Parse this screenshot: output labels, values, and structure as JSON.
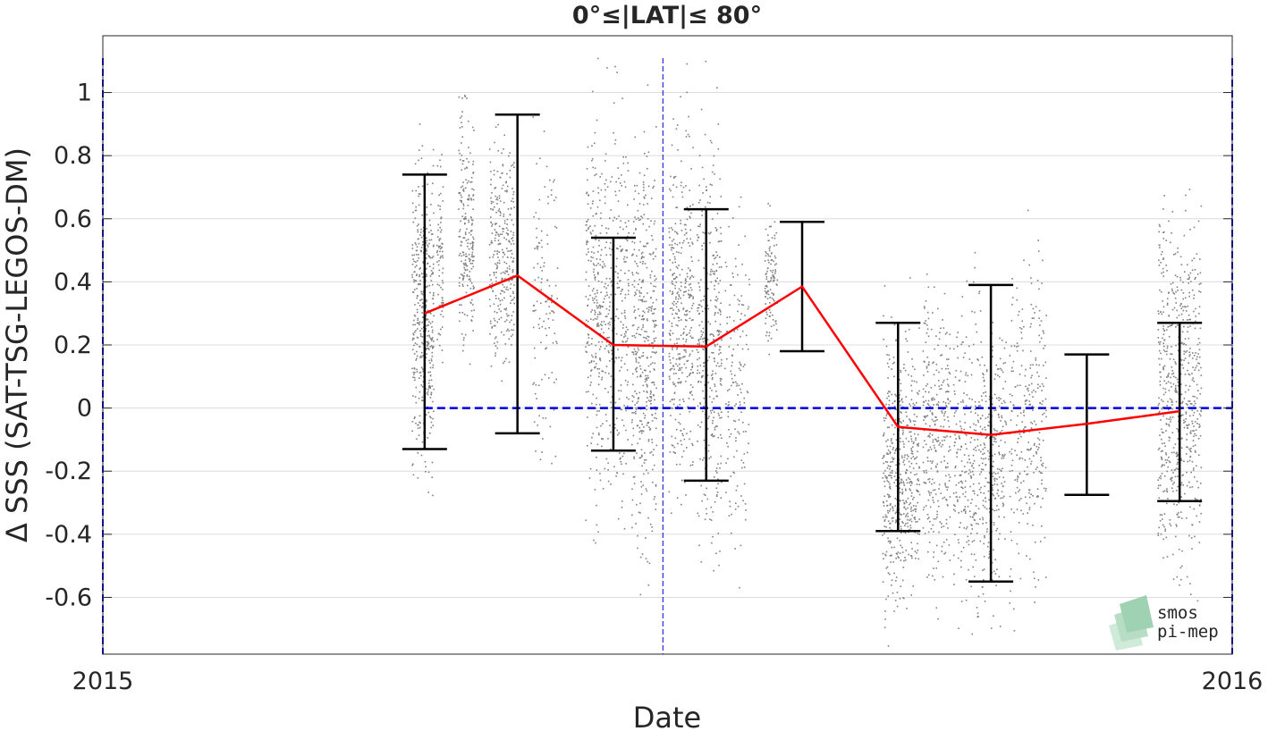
{
  "chart_data": {
    "type": "scatter",
    "title": "0°≤|LAT|≤ 80°",
    "xlabel": "Date",
    "ylabel": "Δ SSS (SAT-TSG-LEGOS-DM)",
    "xlim": [
      "2015-01-01",
      "2016-01-01"
    ],
    "ylim": [
      -0.78,
      1.18
    ],
    "x_tick_labels": [
      "2015",
      "2016"
    ],
    "y_ticks": [
      -0.6,
      -0.4,
      -0.2,
      0,
      0.2,
      0.4,
      0.6,
      0.8,
      1
    ],
    "y_tick_labels": [
      "-0.6",
      "-0.4",
      "-0.2",
      "0",
      "0.2",
      "0.4",
      "0.6",
      "0.8",
      "1"
    ],
    "grid": "horizontal",
    "reference_line": {
      "y": 0,
      "color": "#0000e6",
      "style": "dashed"
    },
    "vertical_markers": [
      {
        "x": "2015-01-01",
        "color": "#0000e6"
      },
      {
        "x": "2015-07-01",
        "color": "#0000e6"
      },
      {
        "x": "2016-01-01",
        "color": "#0000e6"
      }
    ],
    "scatter_color": "#808080",
    "mean_line_color": "#ff0000",
    "errorbar_color": "#000000",
    "binned_stats": [
      {
        "x": "2015-04-15",
        "mean": 0.3,
        "lower": -0.13,
        "upper": 0.74
      },
      {
        "x": "2015-05-15",
        "mean": 0.42,
        "lower": -0.08,
        "upper": 0.93
      },
      {
        "x": "2015-06-15",
        "mean": 0.2,
        "lower": -0.135,
        "upper": 0.54
      },
      {
        "x": "2015-07-15",
        "mean": 0.195,
        "lower": -0.23,
        "upper": 0.63
      },
      {
        "x": "2015-08-15",
        "mean": 0.385,
        "lower": 0.18,
        "upper": 0.59
      },
      {
        "x": "2015-09-15",
        "mean": -0.06,
        "lower": -0.39,
        "upper": 0.27
      },
      {
        "x": "2015-10-15",
        "mean": -0.085,
        "lower": -0.55,
        "upper": 0.39
      },
      {
        "x": "2015-11-15",
        "mean": -0.05,
        "lower": -0.275,
        "upper": 0.17
      },
      {
        "x": "2015-12-15",
        "mean": -0.01,
        "lower": -0.295,
        "upper": 0.27
      }
    ],
    "scatter_clusters": [
      {
        "x_start": "2015-04-11",
        "x_end": "2015-04-18",
        "y_center": 0.3,
        "y_spread": 0.45,
        "n": 420
      },
      {
        "x_start": "2015-04-19",
        "x_end": "2015-04-21",
        "y_center": 0.45,
        "y_spread": 0.3,
        "n": 80
      },
      {
        "x_start": "2015-04-26",
        "x_end": "2015-05-01",
        "y_center": 0.55,
        "y_spread": 0.35,
        "n": 220
      },
      {
        "x_start": "2015-05-06",
        "x_end": "2015-05-14",
        "y_center": 0.5,
        "y_spread": 0.35,
        "n": 300
      },
      {
        "x_start": "2015-05-20",
        "x_end": "2015-05-28",
        "y_center": 0.35,
        "y_spread": 0.5,
        "n": 120
      },
      {
        "x_start": "2015-06-06",
        "x_end": "2015-06-20",
        "y_center": 0.3,
        "y_spread": 0.55,
        "n": 520
      },
      {
        "x_start": "2015-06-21",
        "x_end": "2015-06-29",
        "y_center": 0.2,
        "y_spread": 0.6,
        "n": 420
      },
      {
        "x_start": "2015-07-03",
        "x_end": "2015-07-11",
        "y_center": 0.3,
        "y_spread": 0.55,
        "n": 380
      },
      {
        "x_start": "2015-07-12",
        "x_end": "2015-07-20",
        "y_center": 0.2,
        "y_spread": 0.6,
        "n": 360
      },
      {
        "x_start": "2015-07-21",
        "x_end": "2015-07-29",
        "y_center": 0.1,
        "y_spread": 0.5,
        "n": 150
      },
      {
        "x_start": "2015-08-03",
        "x_end": "2015-08-07",
        "y_center": 0.4,
        "y_spread": 0.2,
        "n": 120
      },
      {
        "x_start": "2015-09-10",
        "x_end": "2015-09-22",
        "y_center": -0.2,
        "y_spread": 0.4,
        "n": 520
      },
      {
        "x_start": "2015-09-23",
        "x_end": "2015-10-02",
        "y_center": -0.1,
        "y_spread": 0.45,
        "n": 300
      },
      {
        "x_start": "2015-10-03",
        "x_end": "2015-10-20",
        "y_center": -0.15,
        "y_spread": 0.45,
        "n": 520
      },
      {
        "x_start": "2015-10-21",
        "x_end": "2015-11-02",
        "y_center": -0.05,
        "y_spread": 0.5,
        "n": 280
      },
      {
        "x_start": "2015-12-08",
        "x_end": "2015-12-22",
        "y_center": 0.05,
        "y_spread": 0.55,
        "n": 620
      }
    ]
  },
  "logo": {
    "line1": "smos",
    "line2": "pi-mep",
    "color": "#7fbf9a"
  }
}
